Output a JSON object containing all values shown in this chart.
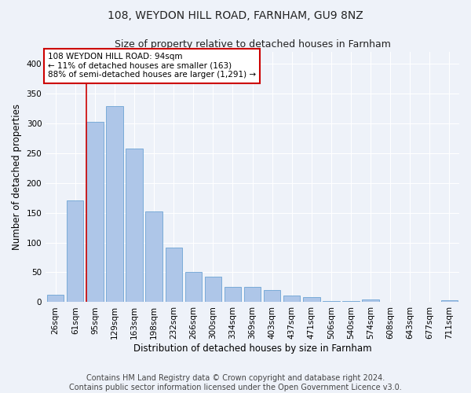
{
  "title1": "108, WEYDON HILL ROAD, FARNHAM, GU9 8NZ",
  "title2": "Size of property relative to detached houses in Farnham",
  "xlabel": "Distribution of detached houses by size in Farnham",
  "ylabel": "Number of detached properties",
  "categories": [
    "26sqm",
    "61sqm",
    "95sqm",
    "129sqm",
    "163sqm",
    "198sqm",
    "232sqm",
    "266sqm",
    "300sqm",
    "334sqm",
    "369sqm",
    "403sqm",
    "437sqm",
    "471sqm",
    "506sqm",
    "540sqm",
    "574sqm",
    "608sqm",
    "643sqm",
    "677sqm",
    "711sqm"
  ],
  "values": [
    12,
    170,
    302,
    329,
    258,
    152,
    91,
    50,
    43,
    26,
    25,
    20,
    11,
    9,
    2,
    2,
    4,
    1,
    1,
    1,
    3
  ],
  "bar_color": "#aec6e8",
  "bar_edge_color": "#6da4d4",
  "annotation_line1": "108 WEYDON HILL ROAD: 94sqm",
  "annotation_line2": "← 11% of detached houses are smaller (163)",
  "annotation_line3": "88% of semi-detached houses are larger (1,291) →",
  "annotation_box_color": "#ffffff",
  "annotation_box_edge": "#cc0000",
  "vline_color": "#cc0000",
  "footer1": "Contains HM Land Registry data © Crown copyright and database right 2024.",
  "footer2": "Contains public sector information licensed under the Open Government Licence v3.0.",
  "ylim": [
    0,
    420
  ],
  "yticks": [
    0,
    50,
    100,
    150,
    200,
    250,
    300,
    350,
    400
  ],
  "background_color": "#eef2f9",
  "grid_color": "#ffffff",
  "title1_fontsize": 10,
  "title2_fontsize": 9,
  "axis_label_fontsize": 8.5,
  "tick_fontsize": 7.5,
  "annotation_fontsize": 7.5,
  "footer_fontsize": 7
}
